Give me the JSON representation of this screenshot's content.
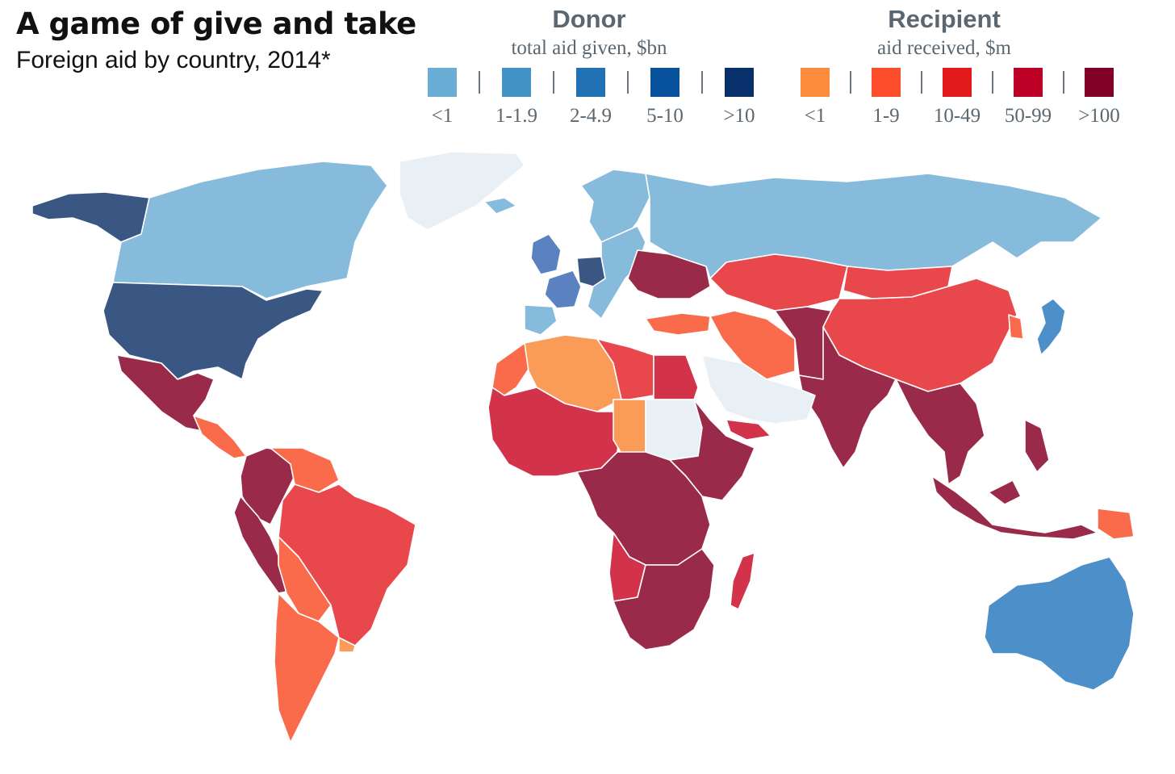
{
  "title": "A game of give and take",
  "subtitle": "Foreign aid by country, 2014*",
  "legend": {
    "donor": {
      "heading": "Donor",
      "subheading": "total aid given, $bn",
      "bins": [
        {
          "label": "<1",
          "color": "#6aaed6"
        },
        {
          "label": "1-1.9",
          "color": "#4292c6"
        },
        {
          "label": "2-4.9",
          "color": "#2171b5"
        },
        {
          "label": "5-10",
          "color": "#08519c"
        },
        {
          "label": ">10",
          "color": "#08306b"
        }
      ]
    },
    "recipient": {
      "heading": "Recipient",
      "subheading": "aid received, $m",
      "bins": [
        {
          "label": "<1",
          "color": "#fd8d3c"
        },
        {
          "label": "1-9",
          "color": "#fc4e2a"
        },
        {
          "label": "10-49",
          "color": "#e31a1c"
        },
        {
          "label": "50-99",
          "color": "#bd0026"
        },
        {
          "label": ">100",
          "color": "#800026"
        }
      ]
    }
  },
  "map_colors": {
    "donor_light": "#86bbdc",
    "donor_mid": "#4d8fc9",
    "donor_dark": "#3a5784",
    "donor_europe_mid": "#5a82c0",
    "recipient_light": "#fa9b58",
    "recipient_orange": "#f96b4b",
    "recipient_red": "#e8484c",
    "recipient_crimson": "#d2324a",
    "recipient_dark": "#9a2a4a",
    "no_data": "#e9f0f5"
  },
  "regions": [
    {
      "name": "greenland",
      "class": "no_data"
    },
    {
      "name": "alaska",
      "class": "donor_dark"
    },
    {
      "name": "canada",
      "class": "donor_light"
    },
    {
      "name": "usa",
      "class": "donor_dark"
    },
    {
      "name": "mexico",
      "class": "recipient_dark"
    },
    {
      "name": "central-america",
      "class": "recipient_orange"
    },
    {
      "name": "colombia-venezuela",
      "class": "recipient_dark"
    },
    {
      "name": "venezuela",
      "class": "recipient_orange"
    },
    {
      "name": "peru",
      "class": "recipient_dark"
    },
    {
      "name": "brazil",
      "class": "recipient_red"
    },
    {
      "name": "bolivia-paraguay",
      "class": "recipient_orange"
    },
    {
      "name": "argentina-chile",
      "class": "recipient_orange"
    },
    {
      "name": "uruguay",
      "class": "recipient_light"
    },
    {
      "name": "iceland-scandinavia",
      "class": "donor_light"
    },
    {
      "name": "uk",
      "class": "donor_europe_mid"
    },
    {
      "name": "france",
      "class": "donor_europe_mid"
    },
    {
      "name": "germany",
      "class": "donor_dark"
    },
    {
      "name": "iberia",
      "class": "donor_light"
    },
    {
      "name": "central-europe",
      "class": "donor_light"
    },
    {
      "name": "balkans-ukraine",
      "class": "recipient_dark"
    },
    {
      "name": "russia",
      "class": "donor_light"
    },
    {
      "name": "turkey",
      "class": "recipient_orange"
    },
    {
      "name": "kazakhstan",
      "class": "recipient_red"
    },
    {
      "name": "china",
      "class": "recipient_red"
    },
    {
      "name": "mongolia",
      "class": "recipient_red"
    },
    {
      "name": "iran",
      "class": "recipient_orange"
    },
    {
      "name": "afghanistan-pakistan",
      "class": "recipient_dark"
    },
    {
      "name": "india",
      "class": "recipient_dark"
    },
    {
      "name": "southeast-asia",
      "class": "recipient_dark"
    },
    {
      "name": "indonesia",
      "class": "recipient_dark"
    },
    {
      "name": "png",
      "class": "recipient_orange"
    },
    {
      "name": "japan",
      "class": "donor_mid"
    },
    {
      "name": "korea",
      "class": "recipient_orange"
    },
    {
      "name": "australia",
      "class": "donor_mid"
    },
    {
      "name": "arabia",
      "class": "no_data"
    },
    {
      "name": "north-africa-west",
      "class": "recipient_light"
    },
    {
      "name": "morocco",
      "class": "recipient_orange"
    },
    {
      "name": "libya",
      "class": "recipient_red"
    },
    {
      "name": "egypt",
      "class": "recipient_crimson"
    },
    {
      "name": "west-africa",
      "class": "recipient_crimson"
    },
    {
      "name": "chad",
      "class": "recipient_light"
    },
    {
      "name": "sudan",
      "class": "no_data"
    },
    {
      "name": "east-africa",
      "class": "recipient_dark"
    },
    {
      "name": "central-africa",
      "class": "recipient_dark"
    },
    {
      "name": "angola",
      "class": "recipient_crimson"
    },
    {
      "name": "southern-africa",
      "class": "recipient_dark"
    },
    {
      "name": "madagascar",
      "class": "recipient_crimson"
    },
    {
      "name": "yemen",
      "class": "recipient_crimson"
    }
  ]
}
